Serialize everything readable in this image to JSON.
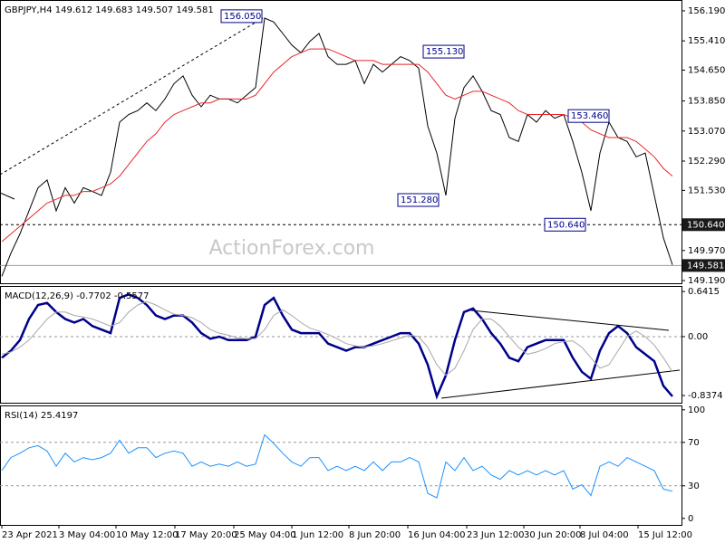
{
  "chart_data": [
    {
      "type": "line",
      "title": "GBPJPY,H4 149.612 149.683 149.507 149.581",
      "watermark": "ActionForex.com",
      "x": [
        0,
        1,
        2,
        3,
        4,
        5,
        6,
        7,
        8,
        9,
        10,
        11,
        12,
        13,
        14,
        15,
        16,
        17,
        18,
        19,
        20,
        21,
        22,
        23,
        24,
        25,
        26,
        27,
        28,
        29,
        30,
        31,
        32,
        33,
        34,
        35,
        36,
        37,
        38,
        39,
        40,
        41,
        42,
        43,
        44,
        45,
        46,
        47,
        48,
        49,
        50,
        51,
        52,
        53,
        54,
        55,
        56,
        57,
        58,
        59,
        60,
        61,
        62,
        63,
        64,
        65,
        66,
        67,
        68,
        69,
        70,
        71,
        72,
        73,
        74
      ],
      "xlim": [
        -0.2,
        75
      ],
      "ylim": [
        149.12,
        156.47
      ],
      "yticks": [
        {
          "value": 156.19,
          "label": "156.190"
        },
        {
          "value": 155.41,
          "label": "155.410"
        },
        {
          "value": 154.65,
          "label": "154.650"
        },
        {
          "value": 153.85,
          "label": "153.850"
        },
        {
          "value": 153.07,
          "label": "153.070"
        },
        {
          "value": 152.29,
          "label": "152.290"
        },
        {
          "value": 151.53,
          "label": "151.530"
        },
        {
          "value": 149.97,
          "label": "149.970"
        },
        {
          "value": 149.19,
          "label": "149.190"
        }
      ],
      "series": [
        {
          "color": "#000000",
          "values": [
            149.3,
            149.9,
            150.4,
            151.0,
            151.6,
            151.8,
            151.0,
            151.6,
            151.2,
            151.6,
            151.5,
            151.4,
            152.0,
            153.3,
            153.5,
            153.6,
            153.8,
            153.6,
            153.9,
            154.3,
            154.5,
            154.0,
            153.7,
            154.0,
            153.9,
            153.9,
            153.8,
            154.0,
            154.2,
            156.0,
            155.9,
            155.6,
            155.3,
            155.1,
            155.4,
            155.6,
            155.0,
            154.8,
            154.8,
            154.9,
            154.3,
            154.8,
            154.6,
            154.8,
            155.0,
            154.9,
            154.7,
            153.2,
            152.5,
            151.4,
            153.4,
            154.2,
            154.5,
            154.1,
            153.6,
            153.5,
            152.9,
            152.8,
            153.5,
            153.3,
            153.6,
            153.4,
            153.5,
            152.8,
            152.0,
            151.0,
            152.5,
            153.3,
            152.9,
            152.8,
            152.4,
            152.5,
            151.4,
            150.3,
            149.6
          ]
        },
        {
          "color": "#e8262d",
          "values": [
            150.2,
            150.4,
            150.6,
            150.8,
            151.0,
            151.2,
            151.3,
            151.4,
            151.4,
            151.5,
            151.5,
            151.6,
            151.7,
            151.9,
            152.2,
            152.5,
            152.8,
            153.0,
            153.3,
            153.5,
            153.6,
            153.7,
            153.8,
            153.8,
            153.9,
            153.9,
            153.9,
            153.9,
            154.0,
            154.3,
            154.6,
            154.8,
            155.0,
            155.1,
            155.2,
            155.2,
            155.2,
            155.1,
            155.0,
            154.9,
            154.9,
            154.9,
            154.8,
            154.8,
            154.8,
            154.8,
            154.8,
            154.6,
            154.3,
            154.0,
            153.9,
            154.0,
            154.1,
            154.1,
            154.0,
            153.9,
            153.8,
            153.6,
            153.5,
            153.5,
            153.5,
            153.5,
            153.5,
            153.4,
            153.3,
            153.1,
            153.0,
            152.9,
            152.9,
            152.9,
            152.8,
            152.6,
            152.4,
            152.1,
            151.9
          ]
        }
      ],
      "levels": [
        {
          "value": 150.64,
          "label": "150.640"
        },
        {
          "value": 149.581,
          "label": "149.581"
        }
      ],
      "annotations": [
        {
          "label": "156.050",
          "value": 156.05,
          "x": 28.9
        },
        {
          "label": "155.130",
          "value": 155.13,
          "x": 46.3
        },
        {
          "label": "151.280",
          "value": 151.28,
          "x": 48.4
        },
        {
          "label": "150.640",
          "value": 150.64,
          "x": 64.6
        },
        {
          "label": "153.460",
          "value": 153.46,
          "x": 62.3
        }
      ]
    },
    {
      "type": "line",
      "title": "MACD(12,26,9) -0.7702 -0.5577",
      "x": [
        0,
        1,
        2,
        3,
        4,
        5,
        6,
        7,
        8,
        9,
        10,
        11,
        12,
        13,
        14,
        15,
        16,
        17,
        18,
        19,
        20,
        21,
        22,
        23,
        24,
        25,
        26,
        27,
        28,
        29,
        30,
        31,
        32,
        33,
        34,
        35,
        36,
        37,
        38,
        39,
        40,
        41,
        42,
        43,
        44,
        45,
        46,
        47,
        48,
        49,
        50,
        51,
        52,
        53,
        54,
        55,
        56,
        57,
        58,
        59,
        60,
        61,
        62,
        63,
        64,
        65,
        66,
        67,
        68,
        69,
        70,
        71,
        72,
        73,
        74
      ],
      "xlim": [
        -0.2,
        75
      ],
      "ylim": [
        -0.94,
        0.72
      ],
      "yticks": [
        0.6415,
        {
          "value": 0,
          "label": "0.00"
        },
        -0.8374
      ],
      "levels": [
        0
      ],
      "series": [
        {
          "color": "#00008b",
          "values": [
            -0.3,
            -0.2,
            -0.05,
            0.25,
            0.45,
            0.48,
            0.35,
            0.25,
            0.2,
            0.25,
            0.15,
            0.1,
            0.05,
            0.55,
            0.6,
            0.55,
            0.45,
            0.3,
            0.25,
            0.3,
            0.3,
            0.2,
            0.05,
            -0.03,
            0.0,
            -0.05,
            -0.05,
            -0.05,
            0.0,
            0.45,
            0.55,
            0.3,
            0.1,
            0.05,
            0.05,
            0.05,
            -0.1,
            -0.15,
            -0.2,
            -0.15,
            -0.15,
            -0.1,
            -0.05,
            0.0,
            0.05,
            0.05,
            -0.1,
            -0.4,
            -0.85,
            -0.55,
            -0.05,
            0.35,
            0.4,
            0.25,
            0.05,
            -0.1,
            -0.3,
            -0.35,
            -0.15,
            -0.1,
            -0.05,
            -0.05,
            -0.05,
            -0.3,
            -0.5,
            -0.6,
            -0.2,
            0.05,
            0.15,
            0.05,
            -0.15,
            -0.25,
            -0.35,
            -0.7,
            -0.85
          ]
        },
        {
          "color": "#a8a8a8",
          "values": [
            -0.25,
            -0.22,
            -0.15,
            -0.05,
            0.1,
            0.25,
            0.35,
            0.35,
            0.3,
            0.28,
            0.25,
            0.2,
            0.15,
            0.2,
            0.35,
            0.45,
            0.5,
            0.45,
            0.38,
            0.32,
            0.3,
            0.27,
            0.2,
            0.1,
            0.05,
            0.02,
            -0.02,
            -0.03,
            -0.03,
            0.1,
            0.3,
            0.38,
            0.3,
            0.2,
            0.12,
            0.08,
            0.03,
            -0.03,
            -0.1,
            -0.13,
            -0.15,
            -0.13,
            -0.1,
            -0.06,
            -0.02,
            0.02,
            0.0,
            -0.15,
            -0.4,
            -0.55,
            -0.45,
            -0.2,
            0.1,
            0.25,
            0.25,
            0.15,
            0.0,
            -0.15,
            -0.25,
            -0.22,
            -0.17,
            -0.1,
            -0.07,
            -0.06,
            -0.15,
            -0.3,
            -0.45,
            -0.4,
            -0.2,
            0.0,
            0.08,
            0.0,
            -0.12,
            -0.3,
            -0.5
          ]
        }
      ]
    },
    {
      "type": "line",
      "title": "RSI(14) 25.4197",
      "x": [
        0,
        1,
        2,
        3,
        4,
        5,
        6,
        7,
        8,
        9,
        10,
        11,
        12,
        13,
        14,
        15,
        16,
        17,
        18,
        19,
        20,
        21,
        22,
        23,
        24,
        25,
        26,
        27,
        28,
        29,
        30,
        31,
        32,
        33,
        34,
        35,
        36,
        37,
        38,
        39,
        40,
        41,
        42,
        43,
        44,
        45,
        46,
        47,
        48,
        49,
        50,
        51,
        52,
        53,
        54,
        55,
        56,
        57,
        58,
        59,
        60,
        61,
        62,
        63,
        64,
        65,
        66,
        67,
        68,
        69,
        70,
        71,
        72,
        73,
        74
      ],
      "xlim": [
        -0.2,
        75
      ],
      "ylim": [
        -6,
        104
      ],
      "yticks": [
        100,
        70,
        30,
        0
      ],
      "levels": [
        70,
        30
      ],
      "series": [
        {
          "color": "#1e90ff",
          "values": [
            44,
            56,
            60,
            65,
            67,
            62,
            48,
            60,
            52,
            56,
            54,
            56,
            60,
            72,
            60,
            65,
            65,
            56,
            60,
            62,
            60,
            48,
            52,
            48,
            50,
            48,
            52,
            48,
            50,
            77,
            69,
            60,
            52,
            48,
            56,
            56,
            44,
            48,
            44,
            48,
            44,
            52,
            44,
            52,
            52,
            56,
            52,
            23,
            19,
            52,
            44,
            56,
            44,
            48,
            40,
            36,
            44,
            40,
            44,
            40,
            44,
            40,
            44,
            27,
            31,
            21,
            48,
            52,
            48,
            56,
            52,
            48,
            44,
            27,
            25
          ]
        }
      ],
      "xticks": [
        {
          "value": 0,
          "label": "23 Apr 2021"
        },
        {
          "value": 6.3,
          "label": "3 May 04:00"
        },
        {
          "value": 12.6,
          "label": "10 May 12:00"
        },
        {
          "value": 19.1,
          "label": "17 May 20:00"
        },
        {
          "value": 25.6,
          "label": "25 May 04:00"
        },
        {
          "value": 32,
          "label": "1 Jun 12:00"
        },
        {
          "value": 38.3,
          "label": "8 Jun 20:00"
        },
        {
          "value": 44.8,
          "label": "16 Jun 04:00"
        },
        {
          "value": 51.3,
          "label": "23 Jun 12:00"
        },
        {
          "value": 57.6,
          "label": "30 Jun 20:00"
        },
        {
          "value": 63.8,
          "label": "8 Jul 04:00"
        },
        {
          "value": 70.2,
          "label": "15 Jul 12:00"
        }
      ]
    }
  ]
}
